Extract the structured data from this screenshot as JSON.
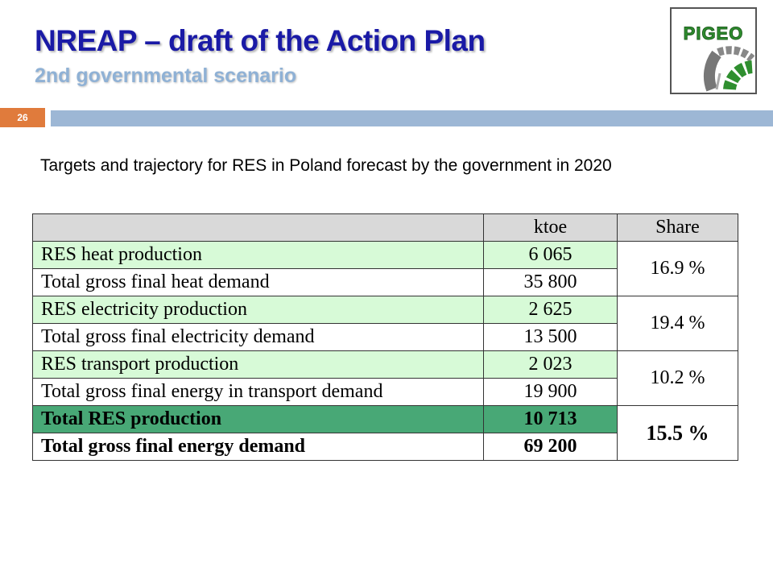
{
  "slide": {
    "title": "NREAP – draft of the Action Plan",
    "subtitle": "2nd governmental scenario",
    "number": "26",
    "caption": "Targets and trajectory for RES in Poland forecast by the government in 2020"
  },
  "logo": {
    "text": "PIGEO",
    "colors": {
      "green": "#2f8f2f",
      "gray": "#777777"
    }
  },
  "table": {
    "headers": [
      "",
      "ktoe",
      "Share"
    ],
    "groups": [
      {
        "share": "16.9 %",
        "rows": [
          {
            "label": "RES heat production",
            "ktoe": "6 065"
          },
          {
            "label": "Total gross final heat demand",
            "ktoe": "35 800"
          }
        ]
      },
      {
        "share": "19.4 %",
        "rows": [
          {
            "label": "RES electricity production",
            "ktoe": "2 625"
          },
          {
            "label": "Total gross final electricity demand",
            "ktoe": "13 500"
          }
        ]
      },
      {
        "share": "10.2 %",
        "rows": [
          {
            "label": "RES transport production",
            "ktoe": "2 023"
          },
          {
            "label": "Total gross final energy in transport demand",
            "ktoe": "19 900"
          }
        ]
      },
      {
        "share": "15.5 %",
        "rows": [
          {
            "label": "Total RES production",
            "ktoe": "10 713"
          },
          {
            "label": "Total gross final energy demand",
            "ktoe": "69 200"
          }
        ]
      }
    ]
  },
  "colors": {
    "title": "#1a1aa6",
    "subtitle": "#8fb1d5",
    "number_box": "#e07b3c",
    "band": "#9db7d5",
    "row_light_green": "#d7fad7",
    "row_dark_green": "#48a876",
    "header_gray": "#d9d9d9"
  }
}
